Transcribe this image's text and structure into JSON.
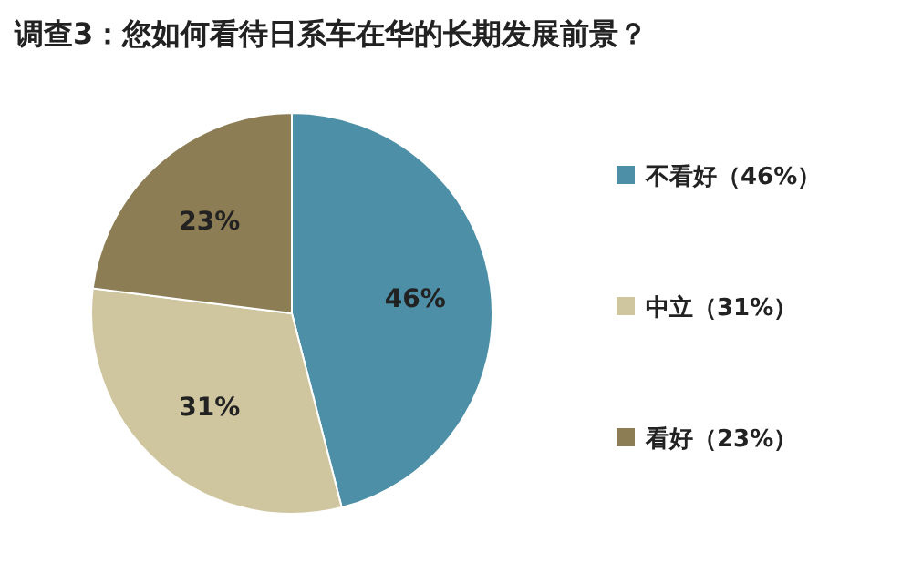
{
  "chart_data": {
    "type": "pie",
    "title": "调查3：您如何看待日系车在华的长期发展前景？",
    "categories": [
      "不看好（46%）",
      "中立（31%）",
      "看好（23%）"
    ],
    "values": [
      46,
      31,
      23
    ],
    "colors": [
      "#4d8fa6",
      "#cfc6a0",
      "#8c7d55"
    ],
    "value_labels": [
      "46%",
      "31%",
      "23%"
    ],
    "legend": "right"
  }
}
